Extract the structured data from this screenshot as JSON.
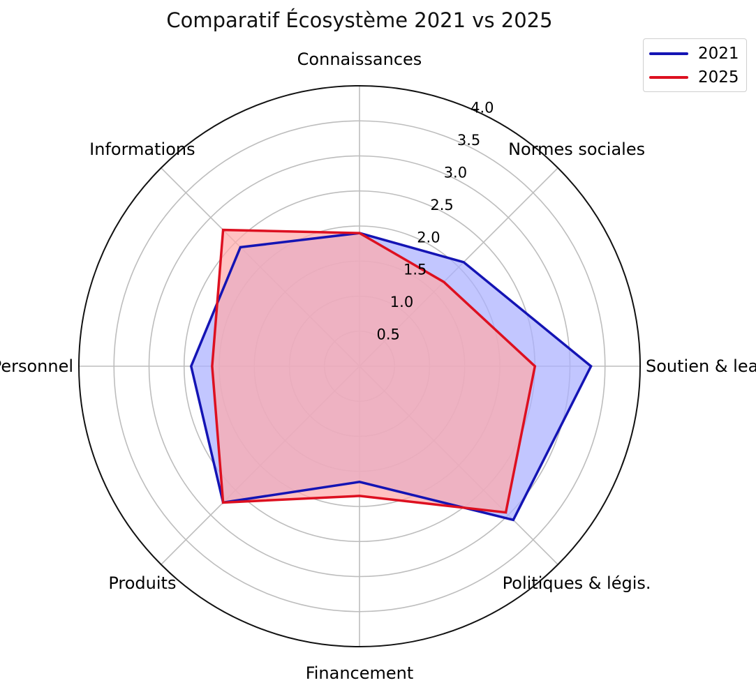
{
  "chart_data": {
    "type": "radar",
    "title": "Comparatif Écosystème 2021 vs 2025",
    "categories": [
      "Connaissances",
      "Normes sociales",
      "Soutien & leader",
      "Politiques & légis.",
      "Financement",
      "Produits",
      "Personnel",
      "Informations"
    ],
    "rlim": [
      0,
      4
    ],
    "r_ticks": [
      "0.5",
      "1.0",
      "1.5",
      "2.0",
      "2.5",
      "3.0",
      "3.5",
      "4.0"
    ],
    "grid": true,
    "legend_position": "top-right",
    "series": [
      {
        "name": "2021",
        "color": "#1414b4",
        "fill": "#aab0ff",
        "values": [
          1.9,
          2.1,
          3.3,
          3.1,
          1.65,
          2.75,
          2.4,
          2.4
        ]
      },
      {
        "name": "2025",
        "color": "#dd1020",
        "fill": "#ffaaaa",
        "values": [
          1.9,
          1.7,
          2.5,
          2.95,
          1.85,
          2.75,
          2.1,
          2.75
        ]
      }
    ]
  }
}
